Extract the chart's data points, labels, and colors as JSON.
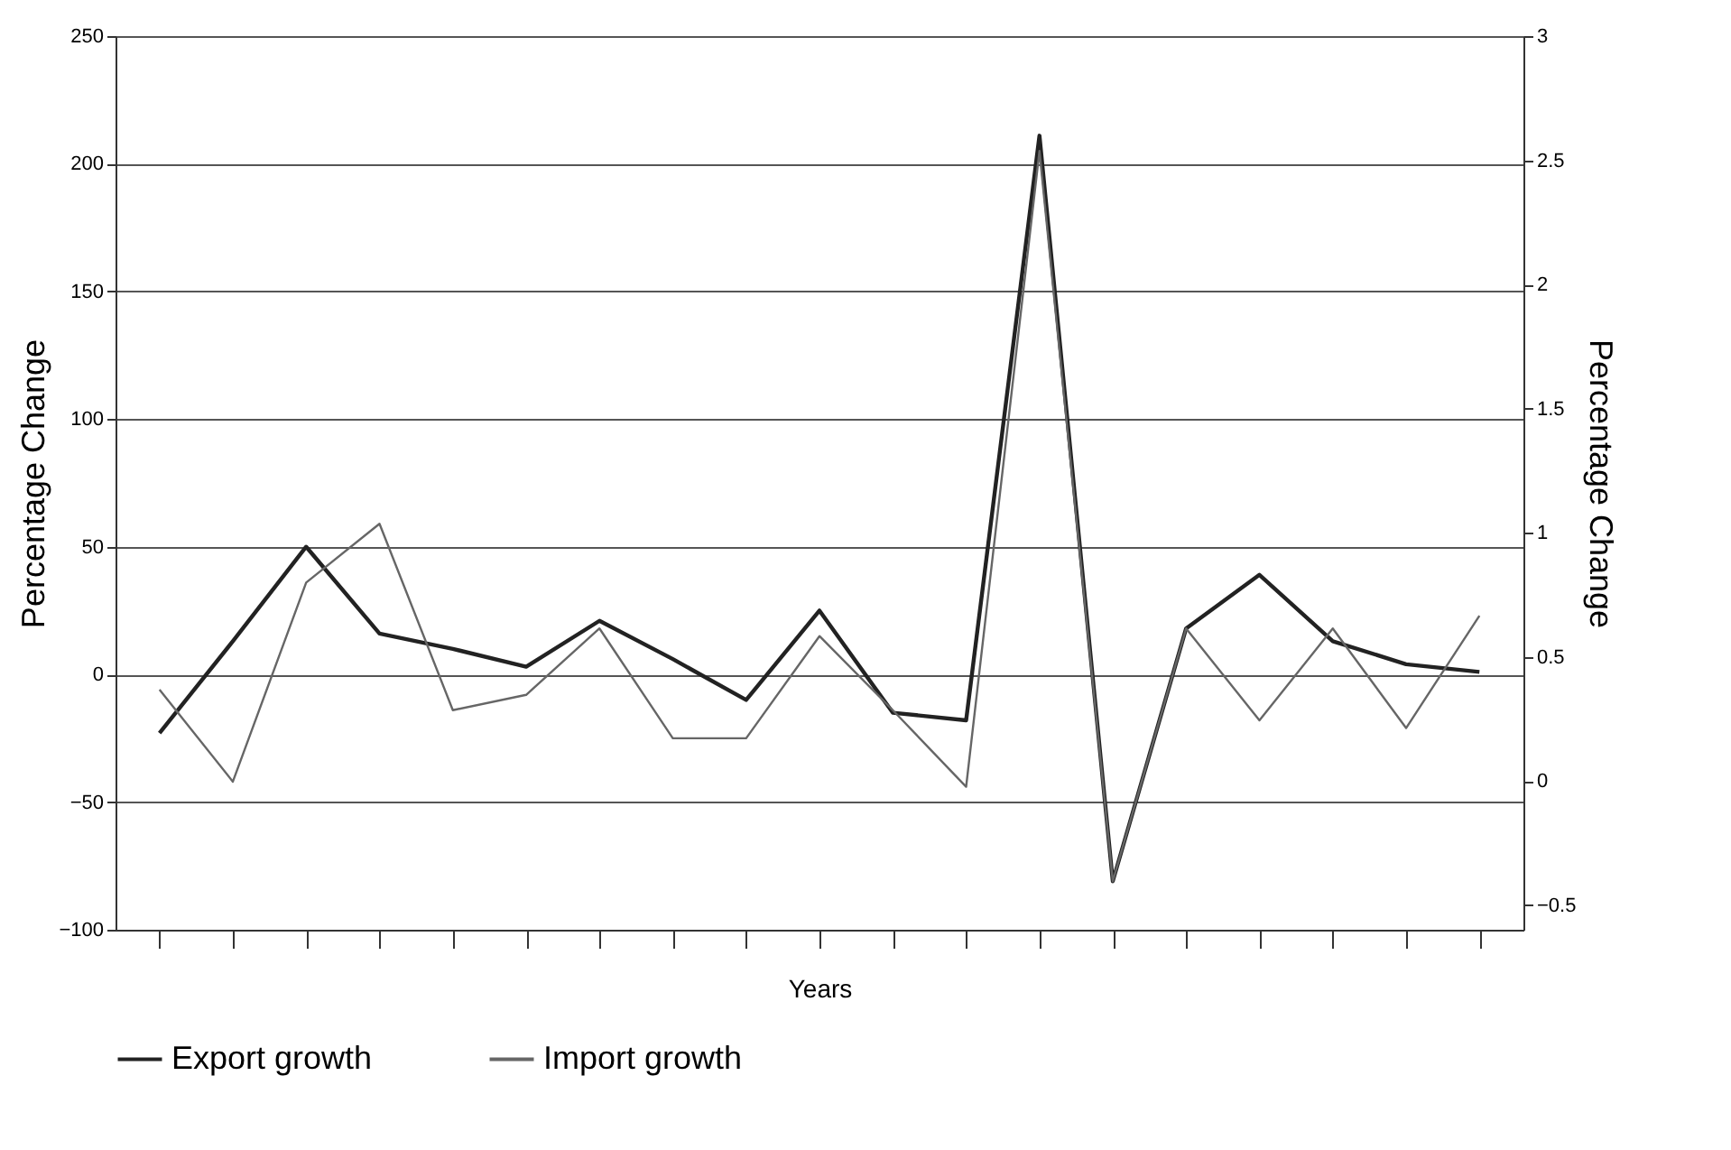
{
  "chart_data": {
    "type": "line",
    "xlabel": "Years",
    "ylabel": "Percentage Change",
    "y2label": "Percentage Change",
    "categories": [
      null,
      null,
      null,
      null,
      null,
      null,
      null,
      null,
      null,
      null,
      null,
      null,
      null,
      null,
      null,
      null,
      null,
      null,
      null
    ],
    "series": [
      {
        "name": "Export growth",
        "color": "#222222",
        "values": [
          -23,
          13,
          50,
          16,
          10,
          3,
          21,
          6,
          -10,
          25,
          -15,
          -18,
          211,
          -81,
          18,
          39,
          13,
          4,
          1
        ]
      },
      {
        "name": "Import growth",
        "color": "#666666",
        "values": [
          -6,
          -42,
          36,
          59,
          -14,
          -8,
          18,
          -25,
          -25,
          15,
          -14,
          -44,
          205,
          -81,
          18,
          -18,
          18,
          -21,
          23
        ]
      }
    ],
    "ylim": [
      -100,
      250
    ],
    "yticks": [
      -100,
      -50,
      0,
      50,
      100,
      150,
      200,
      250
    ],
    "y2lim": [
      -0.6,
      3
    ],
    "y2ticks": [
      -0.5,
      0,
      0.5,
      1,
      1.5,
      2,
      2.5,
      3
    ],
    "grid": "y",
    "legend": "bottom",
    "marker": "none",
    "line_style": "solid"
  }
}
